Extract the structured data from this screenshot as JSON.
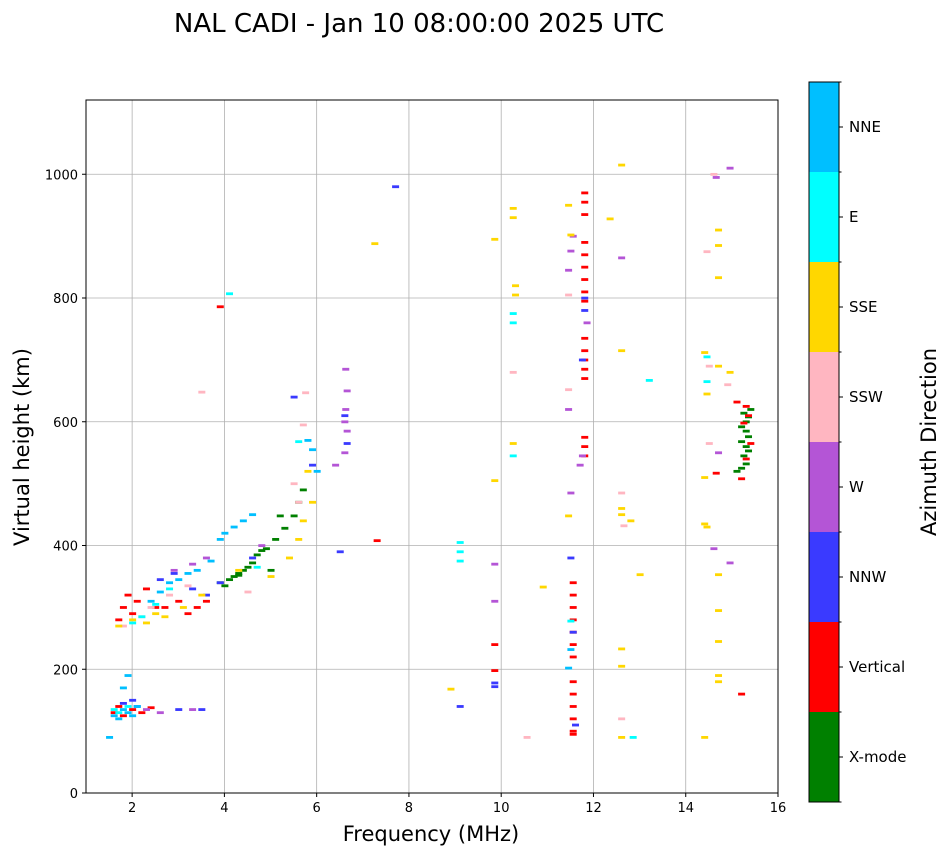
{
  "chart_data": {
    "type": "scatter",
    "title": "NAL CADI - Jan 10 08:00:00 2025 UTC",
    "xlabel": "Frequency (MHz)",
    "ylabel": "Virtual height (km)",
    "xlim": [
      1,
      16
    ],
    "ylim": [
      0,
      1120
    ],
    "xticks": [
      2,
      4,
      6,
      8,
      10,
      12,
      14,
      16
    ],
    "yticks": [
      0,
      200,
      400,
      600,
      800,
      1000
    ],
    "grid": true,
    "colorbar": {
      "title": "Azimuth Direction",
      "categories": [
        {
          "name": "X-mode",
          "color": "#008000"
        },
        {
          "name": "Vertical",
          "color": "#ff0000"
        },
        {
          "name": "NNW",
          "color": "#3a3aff"
        },
        {
          "name": "W",
          "color": "#b455d6"
        },
        {
          "name": "SSW",
          "color": "#ffb6c1"
        },
        {
          "name": "SSE",
          "color": "#ffd700"
        },
        {
          "name": "E",
          "color": "#00ffff"
        },
        {
          "name": "NNE",
          "color": "#00bfff"
        }
      ]
    },
    "series": [
      {
        "name": "X-mode",
        "color": "#008000",
        "points": [
          [
            3.9,
            340
          ],
          [
            4.1,
            345
          ],
          [
            4.2,
            350
          ],
          [
            4.3,
            355
          ],
          [
            4.4,
            360
          ],
          [
            4.6,
            372
          ],
          [
            4.7,
            385
          ],
          [
            4.9,
            395
          ],
          [
            5.1,
            410
          ],
          [
            5.3,
            428
          ],
          [
            5.5,
            448
          ],
          [
            5.6,
            470
          ],
          [
            5.7,
            490
          ],
          [
            5.2,
            448
          ],
          [
            4.8,
            392
          ],
          [
            4.0,
            335
          ],
          [
            4.3,
            352
          ],
          [
            5.0,
            360
          ],
          [
            4.5,
            365
          ],
          [
            15.1,
            520
          ],
          [
            15.2,
            525
          ],
          [
            15.3,
            532
          ],
          [
            15.25,
            545
          ],
          [
            15.35,
            553
          ],
          [
            15.3,
            560
          ],
          [
            15.2,
            568
          ],
          [
            15.35,
            576
          ],
          [
            15.3,
            585
          ],
          [
            15.2,
            592
          ],
          [
            15.3,
            600
          ],
          [
            15.35,
            608
          ],
          [
            15.25,
            614
          ],
          [
            15.4,
            620
          ]
        ]
      },
      {
        "name": "Vertical",
        "color": "#ff0000",
        "points": [
          [
            1.7,
            280
          ],
          [
            1.8,
            300
          ],
          [
            1.9,
            320
          ],
          [
            2.0,
            290
          ],
          [
            2.1,
            310
          ],
          [
            2.3,
            330
          ],
          [
            2.5,
            300
          ],
          [
            2.7,
            300
          ],
          [
            3.0,
            310
          ],
          [
            3.2,
            290
          ],
          [
            3.4,
            300
          ],
          [
            3.6,
            310
          ],
          [
            1.6,
            130
          ],
          [
            1.7,
            140
          ],
          [
            1.8,
            125
          ],
          [
            2.0,
            135
          ],
          [
            2.2,
            130
          ],
          [
            2.4,
            138
          ],
          [
            3.9,
            786
          ],
          [
            7.3,
            408
          ],
          [
            9.85,
            240
          ],
          [
            9.85,
            198
          ],
          [
            11.55,
            340
          ],
          [
            11.55,
            320
          ],
          [
            11.55,
            300
          ],
          [
            11.55,
            280
          ],
          [
            11.55,
            260
          ],
          [
            11.55,
            240
          ],
          [
            11.55,
            220
          ],
          [
            11.55,
            180
          ],
          [
            11.55,
            160
          ],
          [
            11.55,
            140
          ],
          [
            11.55,
            120
          ],
          [
            11.55,
            100
          ],
          [
            11.55,
            95
          ],
          [
            11.8,
            970
          ],
          [
            11.8,
            955
          ],
          [
            11.8,
            935
          ],
          [
            11.8,
            890
          ],
          [
            11.8,
            870
          ],
          [
            11.8,
            850
          ],
          [
            11.8,
            830
          ],
          [
            11.8,
            810
          ],
          [
            11.8,
            795
          ],
          [
            11.8,
            735
          ],
          [
            11.8,
            715
          ],
          [
            11.8,
            700
          ],
          [
            11.8,
            685
          ],
          [
            11.8,
            670
          ],
          [
            11.8,
            575
          ],
          [
            11.8,
            560
          ],
          [
            11.8,
            545
          ],
          [
            14.65,
            517
          ],
          [
            15.2,
            508
          ],
          [
            15.3,
            540
          ],
          [
            15.4,
            565
          ],
          [
            15.25,
            598
          ],
          [
            15.35,
            610
          ],
          [
            15.3,
            625
          ],
          [
            15.1,
            632
          ],
          [
            15.2,
            160
          ]
        ]
      },
      {
        "name": "NNW",
        "color": "#3a3aff",
        "points": [
          [
            1.8,
            145
          ],
          [
            2.0,
            150
          ],
          [
            2.1,
            140
          ],
          [
            3.0,
            135
          ],
          [
            3.5,
            135
          ],
          [
            2.6,
            345
          ],
          [
            2.9,
            355
          ],
          [
            3.3,
            330
          ],
          [
            3.6,
            320
          ],
          [
            3.9,
            340
          ],
          [
            4.6,
            380
          ],
          [
            5.5,
            640
          ],
          [
            5.9,
            530
          ],
          [
            6.5,
            390
          ],
          [
            6.6,
            610
          ],
          [
            6.65,
            565
          ],
          [
            7.7,
            980
          ],
          [
            9.85,
            178
          ],
          [
            9.85,
            172
          ],
          [
            9.1,
            140
          ],
          [
            11.5,
            380
          ],
          [
            11.55,
            260
          ],
          [
            11.6,
            110
          ],
          [
            11.8,
            800
          ],
          [
            11.8,
            780
          ],
          [
            11.75,
            700
          ]
        ]
      },
      {
        "name": "W",
        "color": "#b455d6",
        "points": [
          [
            2.3,
            135
          ],
          [
            2.6,
            130
          ],
          [
            3.3,
            135
          ],
          [
            2.9,
            360
          ],
          [
            3.3,
            370
          ],
          [
            3.6,
            380
          ],
          [
            4.8,
            400
          ],
          [
            6.4,
            530
          ],
          [
            6.6,
            550
          ],
          [
            6.6,
            600
          ],
          [
            6.62,
            620
          ],
          [
            6.65,
            650
          ],
          [
            6.62,
            685
          ],
          [
            6.65,
            585
          ],
          [
            9.85,
            310
          ],
          [
            9.85,
            370
          ],
          [
            11.5,
            485
          ],
          [
            11.45,
            620
          ],
          [
            11.45,
            845
          ],
          [
            11.5,
            876
          ],
          [
            11.55,
            900
          ],
          [
            11.7,
            530
          ],
          [
            11.75,
            545
          ],
          [
            12.6,
            865
          ],
          [
            14.6,
            395
          ],
          [
            14.7,
            550
          ],
          [
            14.95,
            372
          ],
          [
            14.95,
            1010
          ],
          [
            14.65,
            995
          ],
          [
            11.85,
            760
          ]
        ]
      },
      {
        "name": "SSW",
        "color": "#ffb6c1",
        "points": [
          [
            1.8,
            270
          ],
          [
            2.2,
            285
          ],
          [
            2.4,
            300
          ],
          [
            2.8,
            320
          ],
          [
            3.2,
            335
          ],
          [
            3.5,
            648
          ],
          [
            4.5,
            325
          ],
          [
            5.5,
            500
          ],
          [
            5.7,
            595
          ],
          [
            5.75,
            647
          ],
          [
            5.6,
            470
          ],
          [
            10.25,
            680
          ],
          [
            10.55,
            90
          ],
          [
            11.45,
            652
          ],
          [
            11.45,
            805
          ],
          [
            12.6,
            485
          ],
          [
            12.6,
            120
          ],
          [
            12.65,
            432
          ],
          [
            14.5,
            565
          ],
          [
            14.5,
            690
          ],
          [
            14.45,
            875
          ],
          [
            14.9,
            660
          ],
          [
            14.6,
            1000
          ]
        ]
      },
      {
        "name": "SSE",
        "color": "#ffd700",
        "points": [
          [
            1.7,
            270
          ],
          [
            2.0,
            280
          ],
          [
            2.3,
            275
          ],
          [
            2.5,
            290
          ],
          [
            2.7,
            285
          ],
          [
            3.1,
            300
          ],
          [
            3.5,
            320
          ],
          [
            4.3,
            360
          ],
          [
            5.0,
            350
          ],
          [
            5.4,
            380
          ],
          [
            5.6,
            410
          ],
          [
            5.7,
            440
          ],
          [
            5.9,
            470
          ],
          [
            5.8,
            520
          ],
          [
            7.25,
            888
          ],
          [
            8.9,
            168
          ],
          [
            9.85,
            505
          ],
          [
            9.85,
            895
          ],
          [
            10.25,
            930
          ],
          [
            10.25,
            945
          ],
          [
            10.3,
            820
          ],
          [
            10.3,
            805
          ],
          [
            10.25,
            565
          ],
          [
            10.9,
            333
          ],
          [
            11.45,
            448
          ],
          [
            11.5,
            902
          ],
          [
            11.45,
            950
          ],
          [
            12.35,
            928
          ],
          [
            12.6,
            1015
          ],
          [
            12.6,
            715
          ],
          [
            12.6,
            460
          ],
          [
            12.6,
            450
          ],
          [
            12.8,
            440
          ],
          [
            13.0,
            353
          ],
          [
            12.6,
            233
          ],
          [
            12.6,
            205
          ],
          [
            12.6,
            90
          ],
          [
            14.4,
            712
          ],
          [
            14.45,
            645
          ],
          [
            14.4,
            510
          ],
          [
            14.4,
            435
          ],
          [
            14.45,
            430
          ],
          [
            14.4,
            90
          ],
          [
            14.7,
            910
          ],
          [
            14.7,
            885
          ],
          [
            14.7,
            833
          ],
          [
            14.7,
            690
          ],
          [
            14.7,
            353
          ],
          [
            14.7,
            295
          ],
          [
            14.7,
            245
          ],
          [
            14.7,
            190
          ],
          [
            14.7,
            180
          ],
          [
            14.95,
            680
          ]
        ]
      },
      {
        "name": "E",
        "color": "#00ffff",
        "points": [
          [
            1.6,
            135
          ],
          [
            1.7,
            130
          ],
          [
            1.9,
            140
          ],
          [
            2.0,
            275
          ],
          [
            2.2,
            285
          ],
          [
            2.5,
            305
          ],
          [
            2.8,
            330
          ],
          [
            4.1,
            807
          ],
          [
            4.7,
            365
          ],
          [
            5.6,
            568
          ],
          [
            9.1,
            405
          ],
          [
            9.1,
            390
          ],
          [
            9.1,
            375
          ],
          [
            10.25,
            775
          ],
          [
            10.25,
            760
          ],
          [
            10.25,
            545
          ],
          [
            11.5,
            278
          ],
          [
            12.85,
            90
          ],
          [
            13.2,
            667
          ],
          [
            14.45,
            665
          ],
          [
            14.45,
            705
          ]
        ]
      },
      {
        "name": "NNE",
        "color": "#00bfff",
        "points": [
          [
            1.5,
            90
          ],
          [
            1.6,
            125
          ],
          [
            1.7,
            120
          ],
          [
            1.8,
            135
          ],
          [
            1.9,
            130
          ],
          [
            2.0,
            125
          ],
          [
            2.1,
            140
          ],
          [
            1.8,
            170
          ],
          [
            1.9,
            190
          ],
          [
            2.4,
            310
          ],
          [
            2.6,
            325
          ],
          [
            2.8,
            340
          ],
          [
            3.0,
            345
          ],
          [
            3.2,
            355
          ],
          [
            3.4,
            360
          ],
          [
            3.7,
            375
          ],
          [
            3.9,
            410
          ],
          [
            4.0,
            420
          ],
          [
            4.2,
            430
          ],
          [
            4.4,
            440
          ],
          [
            4.6,
            450
          ],
          [
            5.9,
            555
          ],
          [
            5.8,
            570
          ],
          [
            6.0,
            520
          ],
          [
            11.45,
            202
          ],
          [
            11.5,
            232
          ]
        ]
      }
    ]
  }
}
